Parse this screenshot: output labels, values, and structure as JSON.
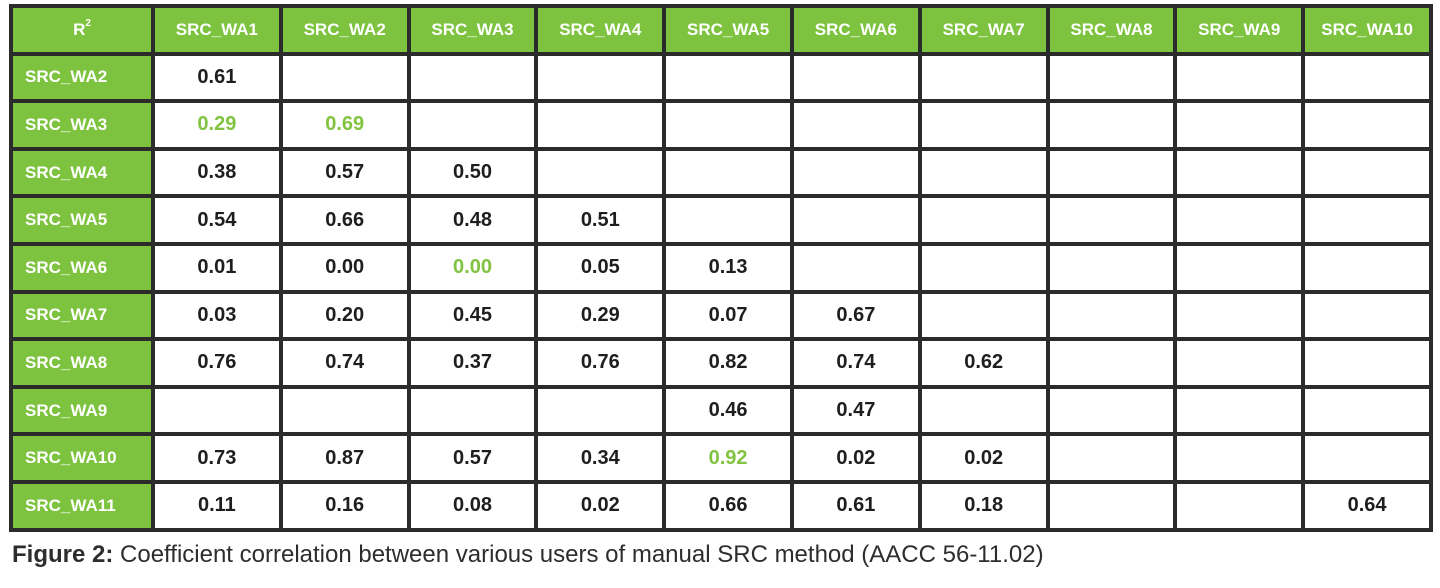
{
  "table": {
    "corner_label": "R",
    "corner_superscript": "2",
    "columns": [
      "SRC_WA1",
      "SRC_WA2",
      "SRC_WA3",
      "SRC_WA4",
      "SRC_WA5",
      "SRC_WA6",
      "SRC_WA7",
      "SRC_WA8",
      "SRC_WA9",
      "SRC_WA10"
    ],
    "rows": [
      {
        "label": "SRC_WA2",
        "cells": [
          "0.61",
          "",
          "",
          "",
          "",
          "",
          "",
          "",
          "",
          ""
        ]
      },
      {
        "label": "SRC_WA3",
        "cells": [
          "0.29",
          "0.69",
          "",
          "",
          "",
          "",
          "",
          "",
          "",
          ""
        ]
      },
      {
        "label": "SRC_WA4",
        "cells": [
          "0.38",
          "0.57",
          "0.50",
          "",
          "",
          "",
          "",
          "",
          "",
          ""
        ]
      },
      {
        "label": "SRC_WA5",
        "cells": [
          "0.54",
          "0.66",
          "0.48",
          "0.51",
          "",
          "",
          "",
          "",
          "",
          ""
        ]
      },
      {
        "label": "SRC_WA6",
        "cells": [
          "0.01",
          "0.00",
          "0.00",
          "0.05",
          "0.13",
          "",
          "",
          "",
          "",
          ""
        ]
      },
      {
        "label": "SRC_WA7",
        "cells": [
          "0.03",
          "0.20",
          "0.45",
          "0.29",
          "0.07",
          "0.67",
          "",
          "",
          "",
          ""
        ]
      },
      {
        "label": "SRC_WA8",
        "cells": [
          "0.76",
          "0.74",
          "0.37",
          "0.76",
          "0.82",
          "0.74",
          "0.62",
          "",
          "",
          ""
        ]
      },
      {
        "label": "SRC_WA9",
        "cells": [
          "",
          "",
          "",
          "",
          "0.46",
          "0.47",
          "",
          "",
          "",
          ""
        ]
      },
      {
        "label": "SRC_WA10",
        "cells": [
          "0.73",
          "0.87",
          "0.57",
          "0.34",
          "0.92",
          "0.02",
          "0.02",
          "",
          "",
          ""
        ]
      },
      {
        "label": "SRC_WA11",
        "cells": [
          "0.11",
          "0.16",
          "0.08",
          "0.02",
          "0.66",
          "0.61",
          "0.18",
          "",
          "",
          "0.64"
        ]
      }
    ],
    "highlighted_cells": [
      {
        "row": 1,
        "col": 0
      },
      {
        "row": 1,
        "col": 1
      },
      {
        "row": 4,
        "col": 2
      },
      {
        "row": 8,
        "col": 4
      }
    ]
  },
  "caption": {
    "label": "Figure 2:",
    "text": " Coefficient correlation between various users of manual SRC method (AACC 56-11.02)"
  },
  "colors": {
    "header_green": "#7dc33f",
    "highlight_text_green": "#82c341",
    "grid_border": "#2b2b2b",
    "value_text": "#1e1e1e"
  }
}
